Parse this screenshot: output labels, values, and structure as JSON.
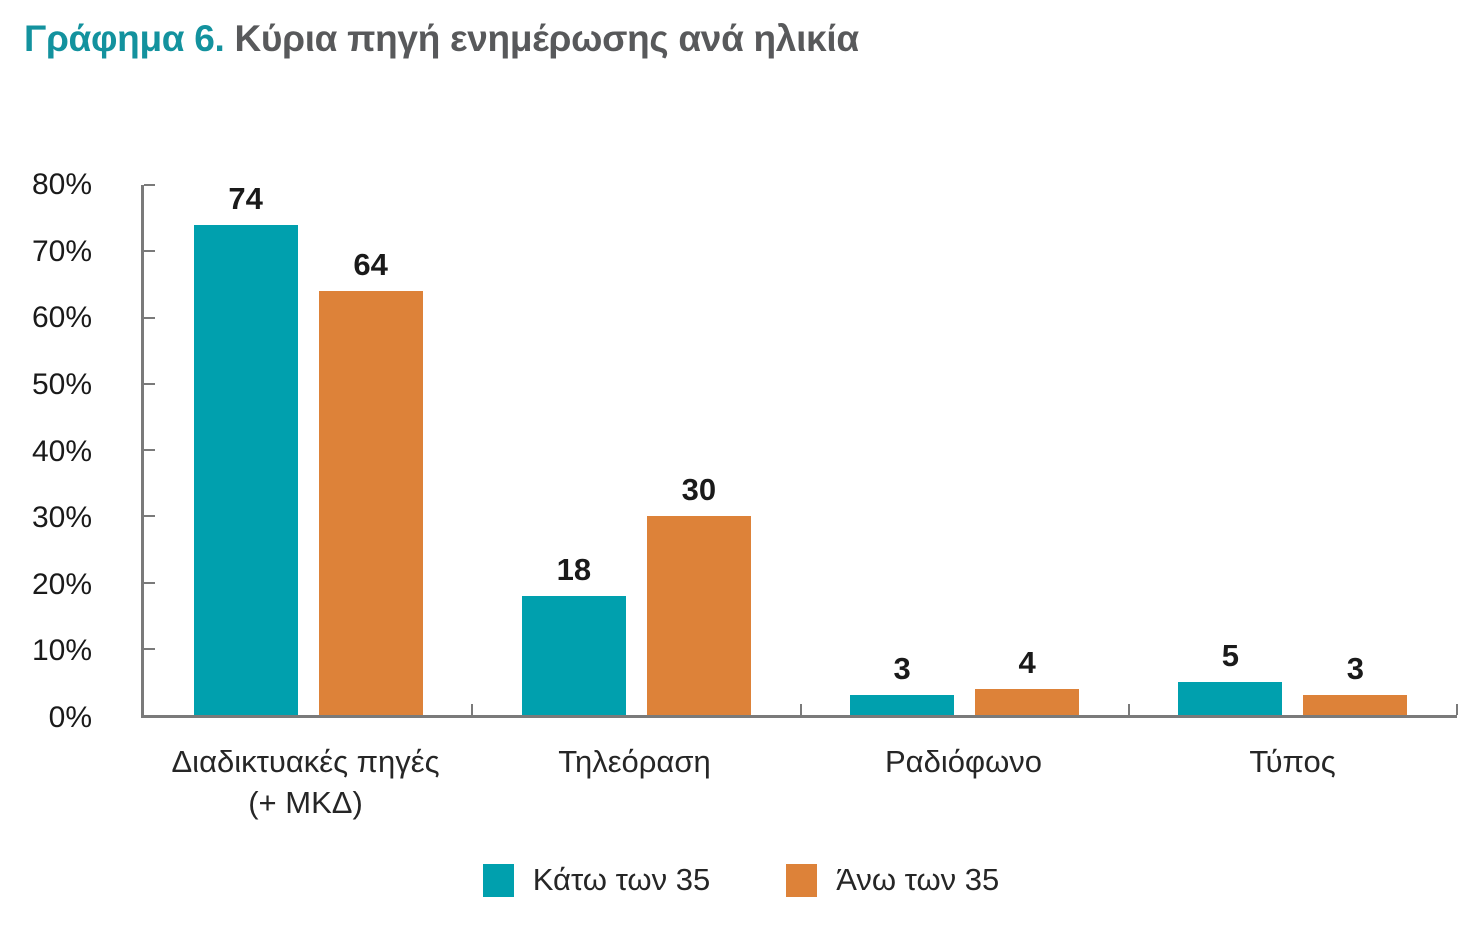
{
  "title": {
    "prefix": "Γράφημα 6.",
    "text": "Κύρια πηγή ενημέρωσης ανά ηλικία"
  },
  "colors": {
    "series_teal": "#00A0AE",
    "series_orange": "#DD8239",
    "title_prefix": "#13929E",
    "title_text": "#58595B",
    "axis": "#7A7A7A",
    "tick_label": "#1A1A1A"
  },
  "chart_data": {
    "type": "bar",
    "title": "Γράφημα 6. Κύρια πηγή ενημέρωσης ανά ηλικία",
    "categories": [
      "Διαδικτυακές πηγές\n(+ ΜΚΔ)",
      "Τηλεόραση",
      "Ραδιόφωνο",
      "Τύπος"
    ],
    "series": [
      {
        "name": "Κάτω των 35",
        "color": "#00A0AE",
        "values": [
          74,
          18,
          3,
          5
        ]
      },
      {
        "name": "Άνω των 35",
        "color": "#DD8239",
        "values": [
          64,
          30,
          4,
          3
        ]
      }
    ],
    "xlabel": "",
    "ylabel": "",
    "ylim": [
      0,
      80
    ],
    "y_ticks": [
      "80%",
      "70%",
      "60%",
      "50%",
      "40%",
      "30%",
      "20%",
      "10%",
      "0%"
    ],
    "grid": false,
    "legend_position": "bottom",
    "value_labels": true
  }
}
